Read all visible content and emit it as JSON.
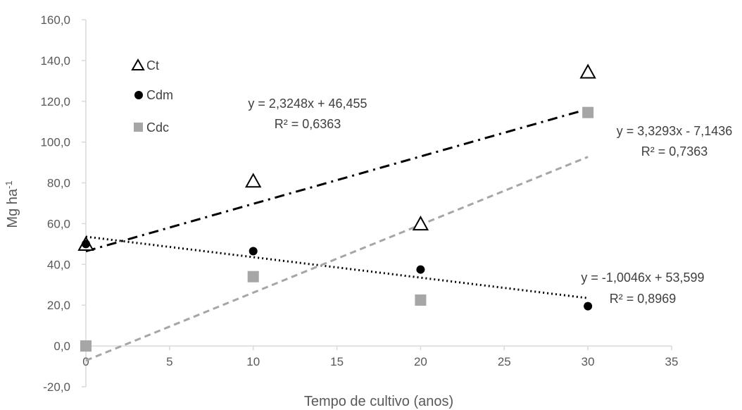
{
  "chart_data": {
    "type": "scatter",
    "xlabel": "Tempo de cultivo (anos)",
    "ylabel_main": "Mg ha",
    "ylabel_sup": "-1",
    "xlim": [
      0,
      35
    ],
    "ylim": [
      -20,
      160
    ],
    "x_ticks": [
      0,
      5,
      10,
      15,
      20,
      25,
      30,
      35
    ],
    "x_tick_labels": [
      "0",
      "5",
      "10",
      "15",
      "20",
      "25",
      "30",
      "35"
    ],
    "y_ticks": [
      -20,
      0,
      20,
      40,
      60,
      80,
      100,
      120,
      140,
      160
    ],
    "y_tick_labels": [
      "-20,0",
      "0,0",
      "20,0",
      "40,0",
      "60,0",
      "80,0",
      "100,0",
      "120,0",
      "140,0",
      "160,0"
    ],
    "grid": false,
    "legend_position": "top-left",
    "series": [
      {
        "name": "Ct",
        "marker": "triangle-open",
        "color": "#000000",
        "x": [
          0,
          10,
          20,
          30
        ],
        "y": [
          49.5,
          80.5,
          59.5,
          134
        ],
        "trendline": {
          "slope": 2.3248,
          "intercept": 46.455,
          "style": "dash-dot",
          "color": "#000000"
        },
        "equation": "y = 2,3248x + 46,455",
        "r2": "R² = 0,6363"
      },
      {
        "name": "Cdm",
        "marker": "circle",
        "color": "#000000",
        "x": [
          0,
          10,
          20,
          30
        ],
        "y": [
          50,
          46.5,
          37.5,
          19.5
        ],
        "trendline": {
          "slope": -1.0046,
          "intercept": 53.599,
          "style": "dotted",
          "color": "#000000"
        },
        "equation": "y = -1,0046x + 53,599",
        "r2": "R² = 0,8969"
      },
      {
        "name": "Cdc",
        "marker": "square",
        "color": "#a6a6a6",
        "x": [
          0,
          10,
          20,
          30
        ],
        "y": [
          0,
          34,
          22.5,
          114.5
        ],
        "trendline": {
          "slope": 3.3293,
          "intercept": -7.1436,
          "style": "dashed",
          "color": "#a6a6a6"
        },
        "equation": "y = 3,3293x - 7,1436",
        "r2": "R² = 0,7363"
      }
    ]
  }
}
